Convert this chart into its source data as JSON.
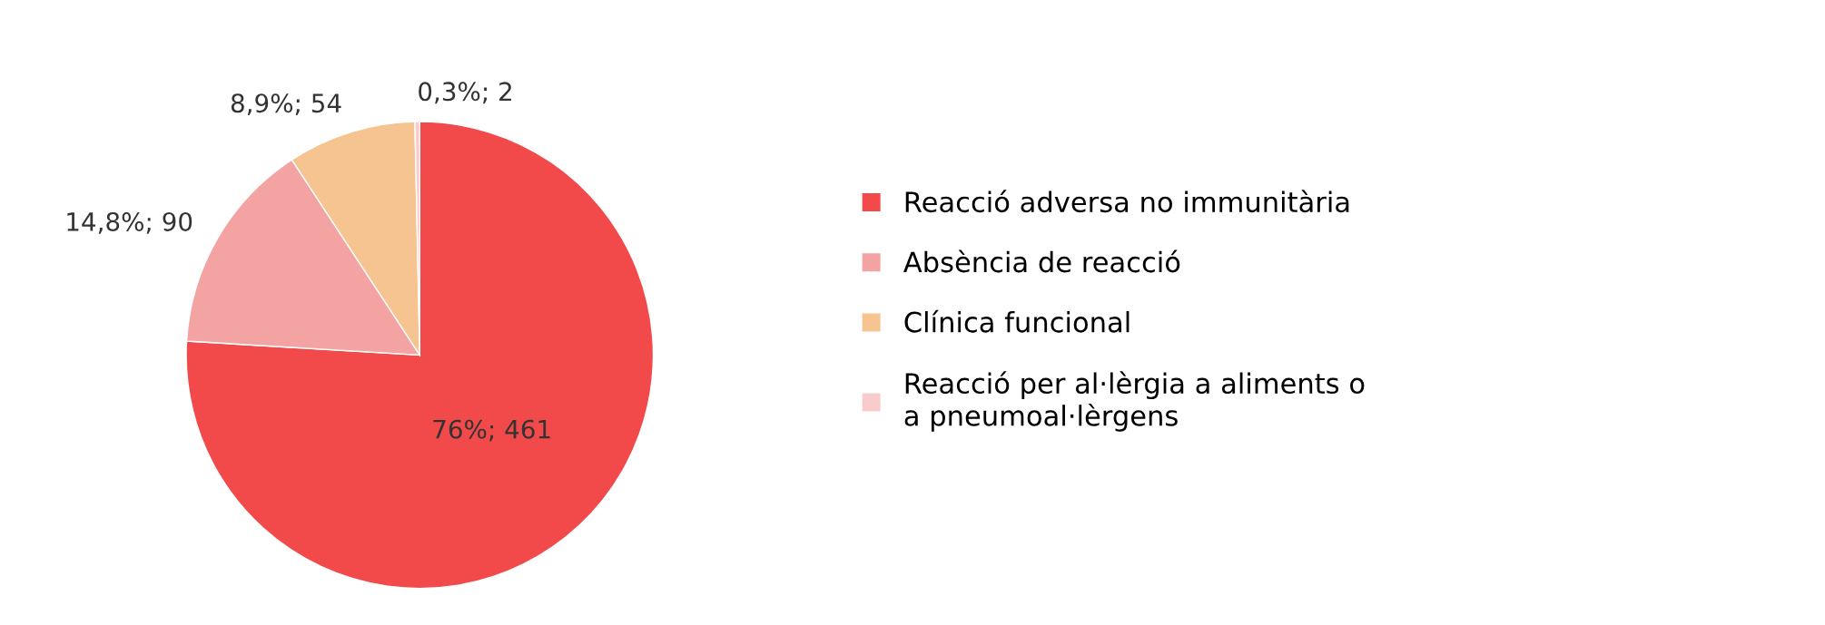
{
  "chart_data": {
    "type": "pie",
    "categories": [
      "Reacció adversa no immunitària",
      "Absència de reacció",
      "Clínica funcional",
      "Reacció per al·lèrgia a aliments o\na pneumoal·lèrgens"
    ],
    "values": [
      461,
      90,
      54,
      2
    ],
    "colors": [
      "#f24a4a",
      "#f4a3a3",
      "#f6c491",
      "#f8cccc"
    ],
    "value_labels": [
      "76%; 461",
      "14,8%; 90",
      "8,9%; 54",
      "0,3%; 2"
    ],
    "legend": "right"
  }
}
